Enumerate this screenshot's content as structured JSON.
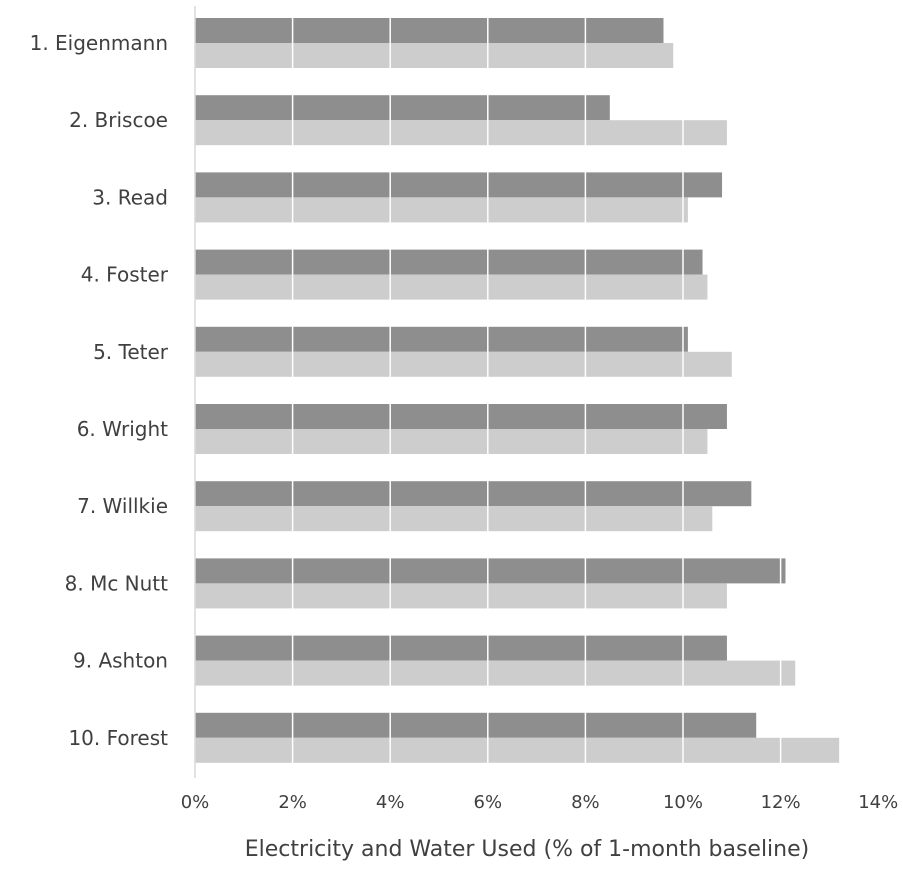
{
  "chart_data": {
    "type": "bar",
    "orientation": "horizontal",
    "categories": [
      "1. Eigenmann",
      "2. Briscoe",
      "3. Read",
      "4. Foster",
      "5. Teter",
      "6. Wright",
      "7. Willkie",
      "8. Mc Nutt",
      "9. Ashton",
      "10. Forest"
    ],
    "series": [
      {
        "color": "#8e8e8e",
        "values": [
          9.6,
          8.5,
          10.8,
          10.4,
          10.1,
          10.9,
          11.4,
          12.1,
          10.9,
          11.5
        ]
      },
      {
        "color": "#cdcdcd",
        "values": [
          9.8,
          10.9,
          10.1,
          10.5,
          11.0,
          10.5,
          10.6,
          10.9,
          12.3,
          13.2
        ]
      }
    ],
    "xlim": [
      0,
      14
    ],
    "ticks": [
      0,
      2,
      4,
      6,
      8,
      10,
      12,
      14
    ],
    "tick_labels": [
      "0%",
      "2%",
      "4%",
      "6%",
      "8%",
      "10%",
      "12%",
      "14%"
    ],
    "xlabel": "Electricity and Water Used (% of 1-month baseline)",
    "ylabel": "",
    "title": "",
    "grid": true,
    "legend": "none"
  }
}
